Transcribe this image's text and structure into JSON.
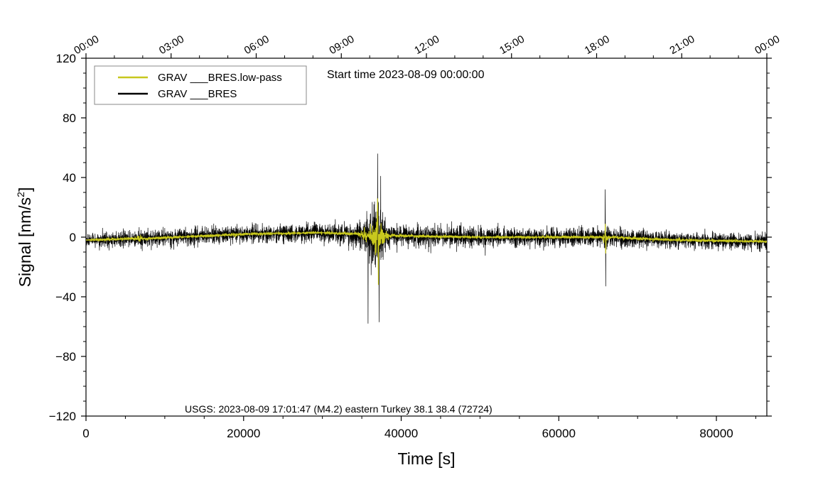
{
  "chart_data": {
    "type": "line",
    "xlabel": "Time [s]",
    "ylabel_main": "Signal [nm/s",
    "ylabel_sup": "2",
    "ylabel_close": "]",
    "xlim": [
      0,
      86400
    ],
    "ylim": [
      -120,
      120
    ],
    "x_ticks": [
      {
        "value": 0,
        "label": "0"
      },
      {
        "value": 20000,
        "label": "20000"
      },
      {
        "value": 40000,
        "label": "40000"
      },
      {
        "value": 60000,
        "label": "60000"
      },
      {
        "value": 80000,
        "label": "80000"
      }
    ],
    "y_ticks": [
      {
        "value": 120,
        "label": "120"
      },
      {
        "value": 80,
        "label": "80"
      },
      {
        "value": 40,
        "label": "40"
      },
      {
        "value": 0,
        "label": "0"
      },
      {
        "value": -40,
        "label": "−40"
      },
      {
        "value": -80,
        "label": "−80"
      },
      {
        "value": -120,
        "label": "−120"
      }
    ],
    "top_ticks": [
      {
        "value": 0,
        "label": "00:00"
      },
      {
        "value": 10800,
        "label": "03:00"
      },
      {
        "value": 21600,
        "label": "06:00"
      },
      {
        "value": 32400,
        "label": "09:00"
      },
      {
        "value": 43200,
        "label": "12:00"
      },
      {
        "value": 54000,
        "label": "15:00"
      },
      {
        "value": 64800,
        "label": "18:00"
      },
      {
        "value": 75600,
        "label": "21:00"
      },
      {
        "value": 86400,
        "label": "00:00"
      }
    ],
    "annotation": "Start time 2023-08-09 00:00:00",
    "event_note": "USGS: 2023-08-09 17:01:47 (M4.2) eastern Turkey 38.1 38.4 (72724)",
    "legend_position": "top-left",
    "series": [
      {
        "name": "GRAV ___BRES.low-pass",
        "color": "#c8c81e",
        "envelope_x": [
          0,
          6000,
          6800,
          7500,
          20000,
          30000,
          34500,
          35500,
          36500,
          37000,
          37500,
          38500,
          50000,
          60000,
          65500,
          65900,
          66300,
          75000,
          75300,
          75700,
          86400
        ],
        "baseline": [
          -2,
          -1,
          -1,
          -1,
          2,
          3,
          2,
          1,
          0,
          0,
          0,
          1,
          0,
          0,
          0,
          0,
          0,
          -2,
          -2,
          -2,
          -3
        ],
        "amplitude": [
          1.5,
          1.5,
          5,
          1.5,
          1.5,
          1.5,
          2,
          8,
          14,
          28,
          14,
          2,
          1.5,
          1.5,
          2,
          10,
          2,
          1.5,
          4,
          1.5,
          1.5
        ],
        "event_peaks": [
          {
            "x": 37000,
            "y": 26
          },
          {
            "x": 37100,
            "y": -32
          },
          {
            "x": 65900,
            "y": 9
          },
          {
            "x": 65950,
            "y": -11
          }
        ]
      },
      {
        "name": "GRAV ___BRES",
        "color": "#000000",
        "envelope_x": [
          0,
          6000,
          6800,
          7500,
          20000,
          30000,
          34500,
          35500,
          36500,
          37000,
          37500,
          38500,
          50000,
          60000,
          65500,
          65900,
          66300,
          75000,
          86400
        ],
        "baseline": [
          -2,
          -1,
          -1,
          -1,
          2,
          3,
          2,
          1,
          0,
          0,
          0,
          1,
          0,
          0,
          0,
          0,
          0,
          -2,
          -3
        ],
        "amplitude": [
          9,
          9,
          12,
          9,
          9,
          10,
          12,
          20,
          30,
          40,
          28,
          12,
          10,
          9,
          10,
          16,
          10,
          9,
          9
        ],
        "event_peaks": [
          {
            "x": 35800,
            "y": -58
          },
          {
            "x": 37000,
            "y": 56
          },
          {
            "x": 37200,
            "y": -57
          },
          {
            "x": 37400,
            "y": 41
          },
          {
            "x": 65900,
            "y": 32
          },
          {
            "x": 65950,
            "y": -33
          }
        ]
      }
    ]
  }
}
